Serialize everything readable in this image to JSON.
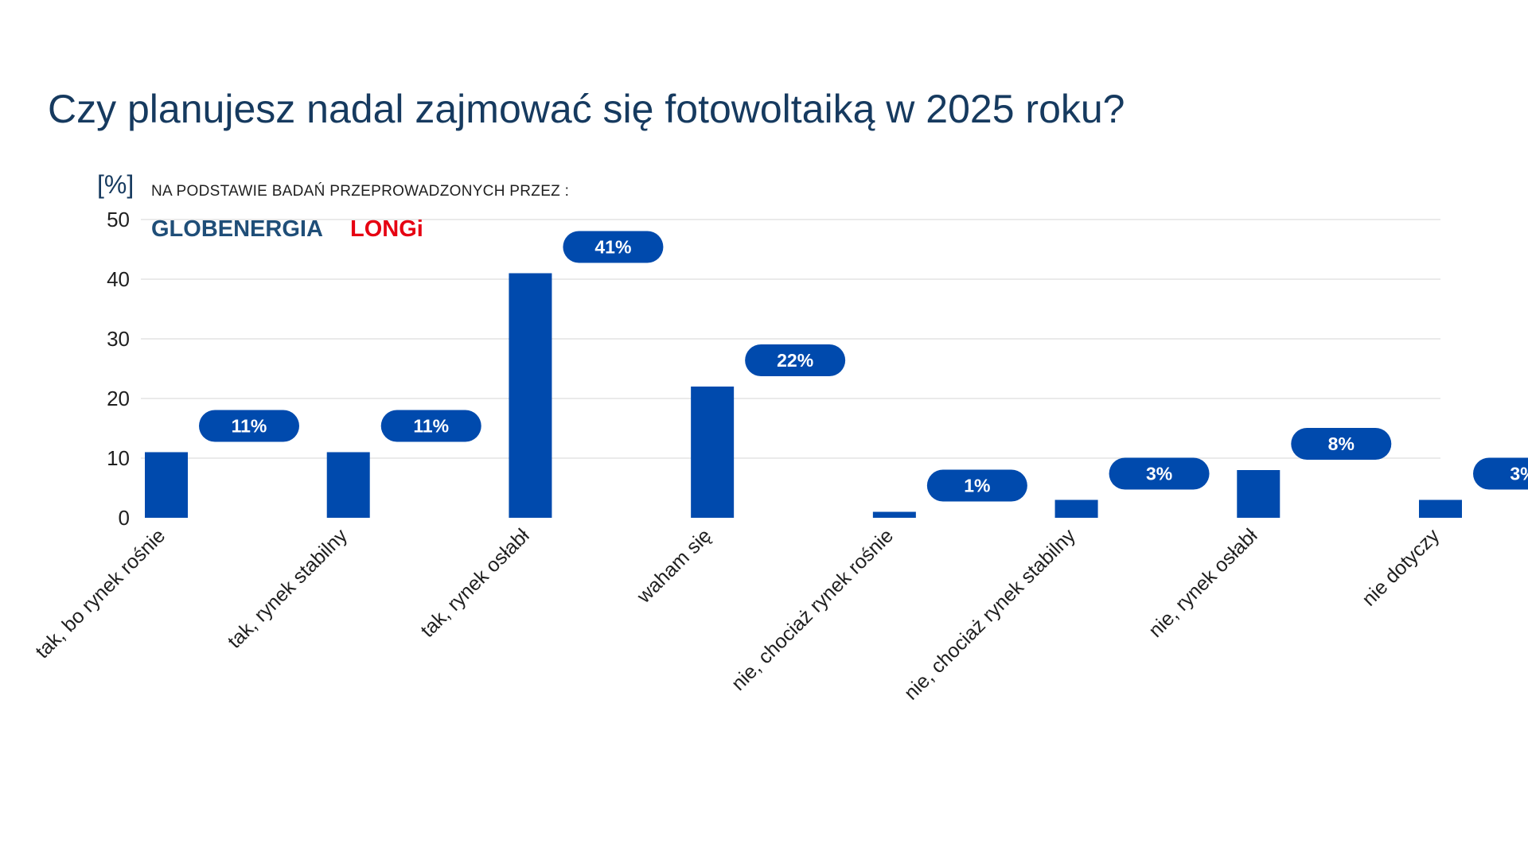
{
  "colors": {
    "bar": "#004aad",
    "pill": "#004aad",
    "title": "#163a5f",
    "axis_text": "#1f1f1f",
    "grid": "#e3e3e3",
    "globenergia": "#1f4e78",
    "longi": "#e60012"
  },
  "source": {
    "note": "NA PODSTAWIE BADAŃ PRZEPROWADZONYCH PRZEZ :",
    "logos": [
      "GLOBENERGIA",
      "LONGi"
    ]
  },
  "chart_data": {
    "type": "bar",
    "title": "Czy planujesz nadal zajmować się fotowoltaiką w 2025 roku?",
    "ylabel": "[%]",
    "xlabel": "",
    "ylim": [
      0,
      50
    ],
    "yticks": [
      0,
      10,
      20,
      30,
      40,
      50
    ],
    "grid": true,
    "categories": [
      "tak, bo rynek rośnie",
      "tak, rynek stabilny",
      "tak, rynek osłabł",
      "waham się",
      "nie, chociaż rynek rośnie",
      "nie, chociaż rynek stabilny",
      "nie, rynek osłabł",
      "nie dotyczy"
    ],
    "values": [
      11,
      11,
      41,
      22,
      1,
      3,
      8,
      3
    ],
    "data_labels": [
      "11%",
      "11%",
      "41%",
      "22%",
      "1%",
      "3%",
      "8%",
      "3%"
    ]
  }
}
